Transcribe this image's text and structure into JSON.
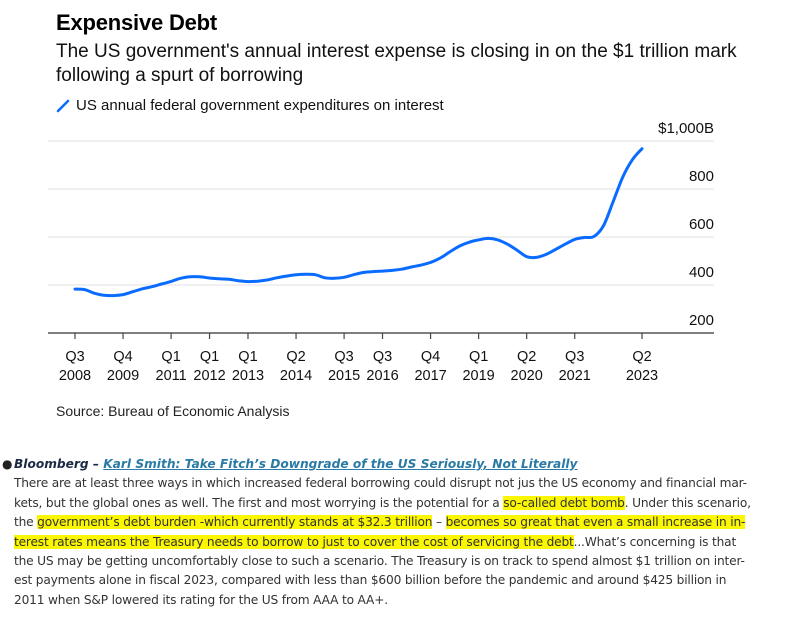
{
  "chart_data": {
    "type": "line",
    "title": "Expensive Debt",
    "subtitle": "The US government's annual interest expense is closing in on the $1 trillion mark following a spurt of borrowing",
    "legend": [
      {
        "name": "US annual federal government expenditures on interest",
        "color": "#0a6cff"
      }
    ],
    "legend_placement": "top-left",
    "ylabel": "",
    "xlabel": "",
    "ylim": [
      200,
      1000
    ],
    "y_ticks": [
      {
        "value": 1000,
        "label": "$1,000B"
      },
      {
        "value": 800,
        "label": "800"
      },
      {
        "value": 600,
        "label": "600"
      },
      {
        "value": 400,
        "label": "400"
      },
      {
        "value": 200,
        "label": "200"
      }
    ],
    "y_axis_side": "right",
    "grid": true,
    "x_range": [
      2008.5,
      2025.3
    ],
    "x_ticks": [
      {
        "value": 2008.5,
        "q": "Q3",
        "year": "2008"
      },
      {
        "value": 2009.75,
        "q": "Q4",
        "year": "2009"
      },
      {
        "value": 2011.0,
        "q": "Q1",
        "year": "2011"
      },
      {
        "value": 2012.0,
        "q": "Q1",
        "year": "2012"
      },
      {
        "value": 2013.0,
        "q": "Q1",
        "year": "2013"
      },
      {
        "value": 2014.25,
        "q": "Q2",
        "year": "2014"
      },
      {
        "value": 2015.5,
        "q": "Q3",
        "year": "2015"
      },
      {
        "value": 2016.5,
        "q": "Q3",
        "year": "2016"
      },
      {
        "value": 2017.75,
        "q": "Q4",
        "year": "2017"
      },
      {
        "value": 2019.0,
        "q": "Q1",
        "year": "2019"
      },
      {
        "value": 2020.25,
        "q": "Q2",
        "year": "2020"
      },
      {
        "value": 2021.5,
        "q": "Q3",
        "year": "2021"
      },
      {
        "value": 2023.25,
        "q": "Q2",
        "year": "2023"
      }
    ],
    "series": [
      {
        "name": "US annual federal government expenditures on interest",
        "color": "#0a6cff",
        "x": [
          2008.5,
          2008.75,
          2009.0,
          2009.25,
          2009.5,
          2009.75,
          2010.0,
          2010.25,
          2010.5,
          2010.75,
          2011.0,
          2011.25,
          2011.5,
          2011.75,
          2012.0,
          2012.25,
          2012.5,
          2012.75,
          2013.0,
          2013.25,
          2013.5,
          2013.75,
          2014.0,
          2014.25,
          2014.5,
          2014.75,
          2015.0,
          2015.25,
          2015.5,
          2015.75,
          2016.0,
          2016.25,
          2016.5,
          2016.75,
          2017.0,
          2017.25,
          2017.5,
          2017.75,
          2018.0,
          2018.25,
          2018.5,
          2018.75,
          2019.0,
          2019.25,
          2019.5,
          2019.75,
          2020.0,
          2020.25,
          2020.5,
          2020.75,
          2021.0,
          2021.25,
          2021.5,
          2021.75,
          2022.0,
          2022.25,
          2022.5,
          2022.75,
          2023.0,
          2023.25
        ],
        "values": [
          383,
          381,
          366,
          357,
          356,
          360,
          372,
          384,
          393,
          404,
          415,
          428,
          434,
          434,
          429,
          426,
          424,
          418,
          414,
          416,
          421,
          430,
          437,
          443,
          445,
          443,
          430,
          428,
          432,
          443,
          452,
          456,
          458,
          461,
          466,
          475,
          483,
          494,
          512,
          538,
          562,
          578,
          588,
          594,
          588,
          570,
          545,
          518,
          515,
          527,
          548,
          570,
          590,
          598,
          602,
          648,
          748,
          850,
          922,
          968
        ]
      }
    ]
  },
  "source": "Source: Bureau of Economic Analysis",
  "article": {
    "publication": "Bloomberg",
    "separator": " – ",
    "headline": "Karl Smith: Take Fitch’s Downgrade of the US Seriously, Not Literally",
    "lines": [
      [
        {
          "t": "There are at least three ways in which increased federal borrowing could disrupt not jus the US economy and financial mar-",
          "h": false
        }
      ],
      [
        {
          "t": "kets, but the global ones as well. The first and most worrying is the potential for a ",
          "h": false
        },
        {
          "t": "so-called debt bomb",
          "h": true
        },
        {
          "t": ". Under this scenario,",
          "h": false
        }
      ],
      [
        {
          "t": "the ",
          "h": false
        },
        {
          "t": "government’s debt burden -which currently stands at $32.3 trillion",
          "h": true
        },
        {
          "t": " – ",
          "h": false
        },
        {
          "t": "becomes so great that even a small increase in in-",
          "h": true
        }
      ],
      [
        {
          "t": "terest rates means the Treasury needs to borrow to just to cover the cost of servicing the debt",
          "h": true
        },
        {
          "t": "...What’s concerning is that",
          "h": false
        }
      ],
      [
        {
          "t": "the US may be getting uncomfortably close to such a scenario. The Treasury is on track to spend almost $1 trillion on inter-",
          "h": false
        }
      ],
      [
        {
          "t": "est payments alone in fiscal 2023, compared with less than $600 billion before the pandemic and around $425 billion in",
          "h": false
        }
      ],
      [
        {
          "t": "2011 when S&P lowered its rating for the US from AAA to AA+.",
          "h": false
        }
      ]
    ],
    "highlight_color": "#fbf700"
  }
}
